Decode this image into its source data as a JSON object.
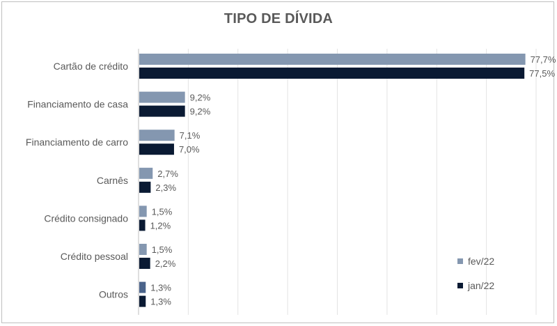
{
  "chart_data": {
    "type": "bar",
    "orientation": "horizontal",
    "title": "TIPO DE DÍVIDA",
    "categories": [
      "Cartão de crédito",
      "Financiamento de casa",
      "Financiamento de carro",
      "Carnês",
      "Crédito consignado",
      "Crédito pessoal",
      "Outros"
    ],
    "series": [
      {
        "name": "fev/22",
        "color": "#8497b0",
        "values": [
          77.7,
          9.2,
          7.1,
          2.7,
          1.5,
          1.5,
          1.3
        ],
        "labels": [
          "77,7%",
          "9,2%",
          "7,1%",
          "2,7%",
          "1,5%",
          "1,5%",
          "1,3%"
        ]
      },
      {
        "name": "jan/22",
        "color": "#0a1a33",
        "values": [
          77.5,
          9.2,
          7.0,
          2.3,
          1.2,
          2.2,
          1.3
        ],
        "labels": [
          "77,5%",
          "9,2%",
          "7,0%",
          "2,3%",
          "1,2%",
          "2,2%",
          "1,3%"
        ]
      }
    ],
    "xlim": [
      0,
      90
    ],
    "grid": true,
    "legend_position": "bottom-right"
  }
}
